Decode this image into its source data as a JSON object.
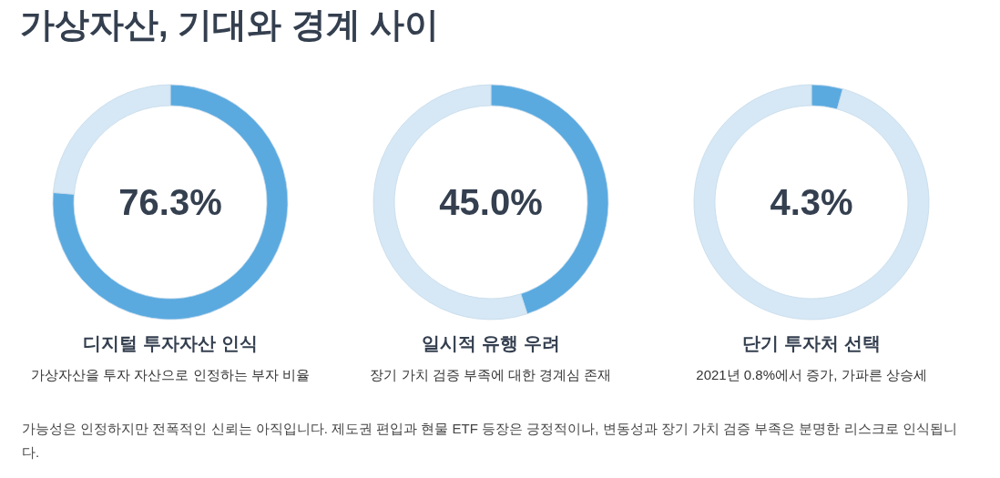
{
  "chart_data": [
    {
      "type": "other",
      "title": "가상자산, 기대와 경계 사이",
      "annotations": [
        "가능성은 인정하지만 전폭적인 신뢰는 아직입니다. 제도권 편입과 현물 ETF 등장은 긍정적이나, 변동성과 장기 가치 검증 부족은 분명한 리스크로 인식됩니다."
      ]
    },
    {
      "type": "donut",
      "title": "디지털 투자자산 인식",
      "subtitle": "가상자산을 투자 자산으로 인정하는 부자 비율",
      "categories": [
        null,
        null
      ],
      "values": [
        76.3,
        23.7
      ],
      "colors": [
        "#5aaae0",
        "#d6e8f5"
      ],
      "annotations": [
        "76.3%"
      ]
    },
    {
      "type": "donut",
      "title": "일시적 유행 우려",
      "subtitle": "장기 가치 검증 부족에 대한 경계심 존재",
      "categories": [
        null,
        null
      ],
      "values": [
        45.0,
        55.0
      ],
      "colors": [
        "#5aaae0",
        "#d6e8f5"
      ],
      "annotations": [
        "45.0%"
      ]
    },
    {
      "type": "donut",
      "title": "단기 투자처 선택",
      "subtitle": "2021년 0.8%에서 증가, 가파른 상승세",
      "categories": [
        null,
        null
      ],
      "values": [
        4.3,
        95.7
      ],
      "colors": [
        "#5aaae0",
        "#d6e8f5"
      ],
      "annotations": [
        "4.3%"
      ]
    }
  ]
}
